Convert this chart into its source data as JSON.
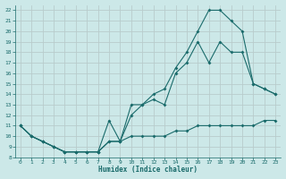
{
  "xlabel": "Humidex (Indice chaleur)",
  "ylabel": "",
  "xlim": [
    -0.5,
    23.5
  ],
  "ylim": [
    8,
    22.5
  ],
  "xticks": [
    0,
    1,
    2,
    3,
    4,
    5,
    6,
    7,
    8,
    9,
    10,
    11,
    12,
    13,
    14,
    15,
    16,
    17,
    18,
    19,
    20,
    21,
    22,
    23
  ],
  "yticks": [
    8,
    9,
    10,
    11,
    12,
    13,
    14,
    15,
    16,
    17,
    18,
    19,
    20,
    21,
    22
  ],
  "bg_color": "#cce8e8",
  "grid_color": "#b0d0d0",
  "line_color": "#1a6b6b",
  "line1_x": [
    0,
    1,
    2,
    3,
    4,
    5,
    6,
    7,
    8,
    9,
    10,
    11,
    12,
    13,
    14,
    15,
    16,
    17,
    18,
    19,
    20,
    21,
    22,
    23
  ],
  "line1_y": [
    11,
    10,
    9.5,
    9,
    8.5,
    8.5,
    8.5,
    8.5,
    9.5,
    9.5,
    10,
    10,
    10,
    10,
    10.5,
    10.5,
    11,
    11,
    11,
    11,
    11,
    11,
    11.5,
    11.5
  ],
  "line2_x": [
    0,
    1,
    2,
    3,
    4,
    5,
    6,
    7,
    8,
    9,
    10,
    11,
    12,
    13,
    14,
    15,
    16,
    17,
    18,
    19,
    20,
    21,
    22,
    23
  ],
  "line2_y": [
    11,
    10,
    9.5,
    9,
    8.5,
    8.5,
    8.5,
    8.5,
    11.5,
    9.5,
    13,
    13,
    13.5,
    13,
    16,
    17,
    19,
    17,
    19,
    18,
    18,
    15,
    14.5,
    14
  ],
  "line3_x": [
    0,
    1,
    2,
    3,
    4,
    5,
    6,
    7,
    8,
    9,
    10,
    11,
    12,
    13,
    14,
    15,
    16,
    17,
    18,
    19,
    20,
    21,
    22,
    23
  ],
  "line3_y": [
    11,
    10,
    9.5,
    9,
    8.5,
    8.5,
    8.5,
    8.5,
    9.5,
    9.5,
    12,
    13,
    14,
    14.5,
    16.5,
    18,
    20,
    22,
    22,
    21,
    20,
    15,
    14.5,
    14
  ]
}
